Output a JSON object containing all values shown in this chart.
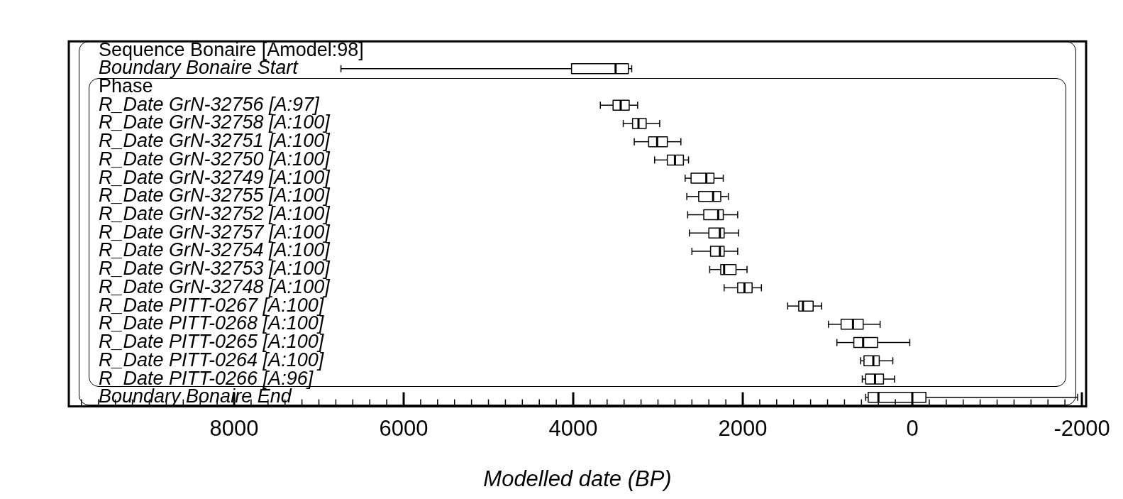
{
  "chart_data": {
    "type": "box",
    "xlabel": "Modelled date (BP)",
    "categories": [
      "Sequence Bonaire [Amodel:98]",
      "Boundary Bonaire Start",
      "Phase",
      "R_Date GrN-32756 [A:97]",
      "R_Date GrN-32758 [A:100]",
      "R_Date GrN-32751 [A:100]",
      "R_Date GrN-32750 [A:100]",
      "R_Date GrN-32749 [A:100]",
      "R_Date GrN-32755 [A:100]",
      "R_Date GrN-32752 [A:100]",
      "R_Date GrN-32757 [A:100]",
      "R_Date GrN-32754 [A:100]",
      "R_Date GrN-32753 [A:100]",
      "R_Date GrN-32748 [A:100]",
      "R_Date PITT-0267 [A:100]",
      "R_Date PITT-0268 [A:100]",
      "R_Date PITT-0265 [A:100]",
      "R_Date PITT-0264 [A:100]",
      "R_Date PITT-0266 [A:96]",
      "Boundary Bonaire End"
    ],
    "orientation": "horizontal",
    "boxes": [
      null,
      {
        "low": 3310,
        "q1": 3350,
        "median": 3500,
        "q3": 4020,
        "high": 6740
      },
      null,
      {
        "low": 3240,
        "q1": 3340,
        "median": 3440,
        "q3": 3530,
        "high": 3680
      },
      {
        "low": 2980,
        "q1": 3140,
        "median": 3230,
        "q3": 3300,
        "high": 3410
      },
      {
        "low": 2730,
        "q1": 2890,
        "median": 3010,
        "q3": 3110,
        "high": 3280
      },
      {
        "low": 2640,
        "q1": 2700,
        "median": 2800,
        "q3": 2890,
        "high": 3040
      },
      {
        "low": 2230,
        "q1": 2340,
        "median": 2430,
        "q3": 2610,
        "high": 2680
      },
      {
        "low": 2170,
        "q1": 2260,
        "median": 2350,
        "q3": 2520,
        "high": 2660
      },
      {
        "low": 2060,
        "q1": 2230,
        "median": 2290,
        "q3": 2460,
        "high": 2650
      },
      {
        "low": 2050,
        "q1": 2220,
        "median": 2270,
        "q3": 2400,
        "high": 2630
      },
      {
        "low": 2060,
        "q1": 2220,
        "median": 2270,
        "q3": 2380,
        "high": 2600
      },
      {
        "low": 1950,
        "q1": 2080,
        "median": 2220,
        "q3": 2260,
        "high": 2390
      },
      {
        "low": 1780,
        "q1": 1890,
        "median": 1980,
        "q3": 2060,
        "high": 2220
      },
      {
        "low": 1070,
        "q1": 1170,
        "median": 1290,
        "q3": 1340,
        "high": 1470
      },
      {
        "low": 380,
        "q1": 580,
        "median": 700,
        "q3": 840,
        "high": 990
      },
      {
        "low": 30,
        "q1": 410,
        "median": 580,
        "q3": 690,
        "high": 890
      },
      {
        "low": 230,
        "q1": 390,
        "median": 460,
        "q3": 570,
        "high": 610
      },
      {
        "low": 210,
        "q1": 340,
        "median": 440,
        "q3": 550,
        "high": 590
      },
      {
        "low": -1950,
        "q1": -160,
        "median": 400,
        "q3": 520,
        "high": 550
      }
    ],
    "xlim": [
      9950,
      -2050
    ],
    "xticks": [
      {
        "value": 9800,
        "label": null
      },
      {
        "value": 9600,
        "label": null
      },
      {
        "value": 9400,
        "label": null
      },
      {
        "value": 9200,
        "label": null
      },
      {
        "value": 9000,
        "label": null
      },
      {
        "value": 8800,
        "label": null
      },
      {
        "value": 8600,
        "label": null
      },
      {
        "value": 8400,
        "label": null
      },
      {
        "value": 8200,
        "label": null
      },
      8000,
      {
        "value": 7800,
        "label": null
      },
      {
        "value": 7600,
        "label": null
      },
      {
        "value": 7400,
        "label": null
      },
      {
        "value": 7200,
        "label": null
      },
      {
        "value": 7000,
        "label": null
      },
      {
        "value": 6800,
        "label": null
      },
      {
        "value": 6600,
        "label": null
      },
      {
        "value": 6400,
        "label": null
      },
      {
        "value": 6200,
        "label": null
      },
      6000,
      {
        "value": 5800,
        "label": null
      },
      {
        "value": 5600,
        "label": null
      },
      {
        "value": 5400,
        "label": null
      },
      {
        "value": 5200,
        "label": null
      },
      {
        "value": 5000,
        "label": null
      },
      {
        "value": 4800,
        "label": null
      },
      {
        "value": 4600,
        "label": null
      },
      {
        "value": 4400,
        "label": null
      },
      {
        "value": 4200,
        "label": null
      },
      4000,
      {
        "value": 3800,
        "label": null
      },
      {
        "value": 3600,
        "label": null
      },
      {
        "value": 3400,
        "label": null
      },
      {
        "value": 3200,
        "label": null
      },
      {
        "value": 3000,
        "label": null
      },
      {
        "value": 2800,
        "label": null
      },
      {
        "value": 2600,
        "label": null
      },
      {
        "value": 2400,
        "label": null
      },
      {
        "value": 2200,
        "label": null
      },
      2000,
      {
        "value": 1800,
        "label": null
      },
      {
        "value": 1600,
        "label": null
      },
      {
        "value": 1400,
        "label": null
      },
      {
        "value": 1200,
        "label": null
      },
      {
        "value": 1000,
        "label": null
      },
      {
        "value": 800,
        "label": null
      },
      {
        "value": 600,
        "label": null
      },
      {
        "value": 400,
        "label": null
      },
      {
        "value": 200,
        "label": null
      },
      0,
      {
        "value": -200,
        "label": null
      },
      {
        "value": -400,
        "label": null
      },
      {
        "value": -600,
        "label": null
      },
      {
        "value": -800,
        "label": null
      },
      {
        "value": -1000,
        "label": null
      },
      {
        "value": -1200,
        "label": null
      },
      {
        "value": -1400,
        "label": null
      },
      {
        "value": -1600,
        "label": null
      },
      {
        "value": -1800,
        "label": null
      },
      -2000
    ],
    "legend": false
  }
}
